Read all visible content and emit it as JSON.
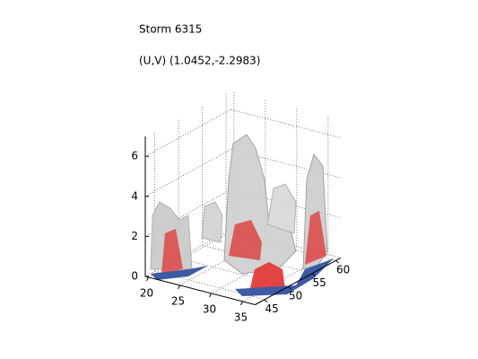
{
  "chart_data": {
    "type": "isosurface",
    "title": "Storm 6315",
    "subtitle": "(U,V) (1.0452,-2.2983)",
    "xlim": [
      19.5,
      37
    ],
    "xticks": [
      20,
      25,
      30,
      35
    ],
    "ylim": [
      43,
      61
    ],
    "yticks": [
      45,
      50,
      55,
      60
    ],
    "zlim": [
      0,
      7
    ],
    "zticks": [
      0,
      2,
      4,
      6
    ],
    "grid": true
  }
}
